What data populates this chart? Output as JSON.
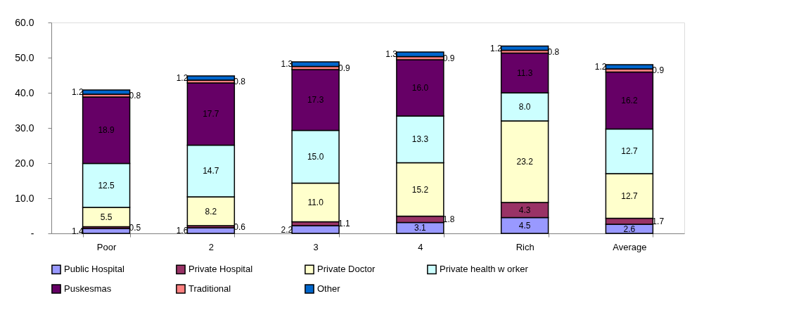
{
  "chart_data": {
    "type": "bar",
    "stacked": true,
    "legend": "bottom",
    "grid": false,
    "categories": [
      "Poor",
      "2",
      "3",
      "4",
      "Rich",
      "Average"
    ],
    "ylim": [
      0,
      60
    ],
    "yticks": [
      {
        "value": 0,
        "label": "-"
      },
      {
        "value": 10,
        "label": "10.0"
      },
      {
        "value": 20,
        "label": "20.0"
      },
      {
        "value": 30,
        "label": "30.0"
      },
      {
        "value": 40,
        "label": "40.0"
      },
      {
        "value": 50,
        "label": "50.0"
      },
      {
        "value": 60,
        "label": "60.0"
      }
    ],
    "series": [
      {
        "name": "Public Hospital",
        "color": "#9999ff",
        "values": [
          1.4,
          1.6,
          2.2,
          3.1,
          4.5,
          2.6
        ],
        "value_labels": [
          "1.4",
          "1.6",
          "2.2",
          "3.1",
          "4.5",
          "2.6"
        ]
      },
      {
        "name": "Private Hospital",
        "color": "#993366",
        "values": [
          0.5,
          0.6,
          1.1,
          1.8,
          4.3,
          1.7
        ],
        "value_labels": [
          "0.5",
          "0.6",
          "1.1",
          "1.8",
          "4.3",
          "1.7"
        ]
      },
      {
        "name": "Private Doctor",
        "color": "#ffffcc",
        "values": [
          5.5,
          8.2,
          11.0,
          15.2,
          23.2,
          12.7
        ],
        "value_labels": [
          "5.5",
          "8.2",
          "11.0",
          "15.2",
          "23.2",
          "12.7"
        ]
      },
      {
        "name": "Private health w orker",
        "color": "#ccffff",
        "values": [
          12.5,
          14.7,
          15.0,
          13.3,
          8.0,
          12.7
        ],
        "value_labels": [
          "12.5",
          "14.7",
          "15.0",
          "13.3",
          "8.0",
          "12.7"
        ]
      },
      {
        "name": "Puskesmas",
        "color": "#660066",
        "values": [
          18.9,
          17.7,
          17.3,
          16.0,
          11.3,
          16.2
        ],
        "value_labels": [
          "18.9",
          "17.7",
          "17.3",
          "16.0",
          "11.3",
          "16.2"
        ]
      },
      {
        "name": "Traditional",
        "color": "#ff8080",
        "values": [
          0.8,
          0.8,
          0.9,
          0.9,
          0.8,
          0.9
        ],
        "value_labels": [
          "0.8",
          "0.8",
          "0.9",
          "0.9",
          "0.8",
          "0.9"
        ]
      },
      {
        "name": "Other",
        "color": "#0066cc",
        "values": [
          1.2,
          1.2,
          1.3,
          1.3,
          1.2,
          1.2
        ],
        "value_labels": [
          "1.2",
          "1.2",
          "1.3",
          "1.3",
          "1.2",
          "1.2"
        ]
      }
    ]
  }
}
